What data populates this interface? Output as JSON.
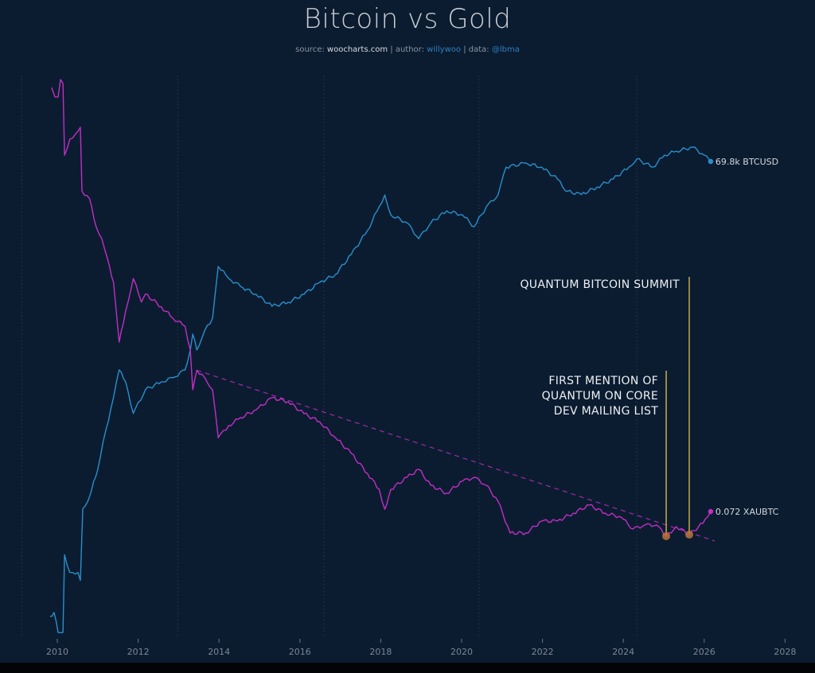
{
  "header": {
    "title": "Bitcoin vs Gold",
    "source_label": "source:",
    "source_value": "woocharts.com",
    "author_label": "| author:",
    "author_value": "willywoo",
    "data_label": "| data:",
    "data_value": "@lbma",
    "sep": " "
  },
  "chart_data": {
    "type": "line",
    "title": "Bitcoin vs Gold",
    "xlabel": "",
    "ylabel": "",
    "yscale": "log",
    "y_axis_labels_shown": false,
    "grid": "vertical dotted lines at halving dates",
    "xlim": [
      2009,
      2028
    ],
    "x_ticks": [
      "2010",
      "2012",
      "2014",
      "2016",
      "2018",
      "2020",
      "2022",
      "2024",
      "2026",
      "2028"
    ],
    "x_tick_values": [
      2010,
      2012,
      2014,
      2016,
      2018,
      2020,
      2022,
      2024,
      2026,
      2028
    ],
    "vlines": [
      2009.12,
      2012.98,
      2016.59,
      2020.43,
      2024.33
    ],
    "series": [
      {
        "name": "BTCUSD",
        "end_label": "69.8k BTCUSD",
        "color": "#2a8fc9",
        "x": [
          2009.82,
          2009.92,
          2010.02,
          2010.14,
          2010.18,
          2010.31,
          2010.51,
          2010.57,
          2010.63,
          2010.76,
          2010.9,
          2011.0,
          2011.2,
          2011.39,
          2011.53,
          2011.69,
          2011.88,
          2012.18,
          2012.57,
          2012.86,
          2013.16,
          2013.29,
          2013.35,
          2013.45,
          2013.65,
          2013.84,
          2013.98,
          2014.24,
          2014.53,
          2014.92,
          2015.31,
          2015.71,
          2016.1,
          2016.49,
          2016.88,
          2017.27,
          2017.67,
          2017.96,
          2018.1,
          2018.25,
          2018.65,
          2018.94,
          2019.24,
          2019.63,
          2020.02,
          2020.31,
          2020.61,
          2020.9,
          2021.1,
          2021.59,
          2021.98,
          2022.37,
          2022.57,
          2022.96,
          2023.35,
          2023.75,
          2024.14,
          2024.33,
          2024.73,
          2025.02,
          2025.31,
          2025.71,
          2026.0,
          2026.16
        ],
        "values": [
          0.089,
          0.1,
          0.055,
          0.055,
          0.56,
          0.33,
          0.33,
          0.26,
          2.2,
          2.8,
          5.0,
          7.1,
          23,
          61,
          139,
          97,
          38,
          77,
          97,
          110,
          139,
          252,
          404,
          252,
          455,
          650,
          3040,
          2130,
          1680,
          1325,
          928,
          1045,
          1325,
          1890,
          2400,
          4340,
          8850,
          18000,
          25700,
          14200,
          11200,
          6980,
          11200,
          16000,
          14200,
          9970,
          18000,
          25700,
          59000,
          66600,
          59000,
          41300,
          29000,
          26000,
          32600,
          41300,
          59000,
          74900,
          59000,
          84300,
          95000,
          107000,
          84300,
          69800
        ]
      },
      {
        "name": "XAUBTC",
        "end_label": "0.072 XAUBTC",
        "color": "#c22ec4",
        "x": [
          2009.86,
          2009.94,
          2010.02,
          2010.08,
          2010.14,
          2010.18,
          2010.31,
          2010.51,
          2010.57,
          2010.61,
          2010.8,
          2010.96,
          2011.1,
          2011.24,
          2011.39,
          2011.53,
          2011.69,
          2011.88,
          2012.08,
          2012.18,
          2012.57,
          2012.86,
          2013.16,
          2013.29,
          2013.35,
          2013.45,
          2013.65,
          2013.84,
          2013.98,
          2014.24,
          2014.53,
          2014.92,
          2015.31,
          2015.71,
          2016.1,
          2016.49,
          2016.88,
          2017.27,
          2017.67,
          2017.96,
          2018.1,
          2018.25,
          2018.65,
          2018.94,
          2019.24,
          2019.63,
          2020.02,
          2020.31,
          2020.61,
          2020.9,
          2021.2,
          2021.59,
          2021.98,
          2022.37,
          2022.76,
          2023.16,
          2023.55,
          2023.94,
          2024.24,
          2024.53,
          2024.82,
          2025.06,
          2025.31,
          2025.63,
          2025.86,
          2026.02,
          2026.16
        ],
        "values": [
          15400,
          11700,
          11700,
          19400,
          17300,
          2170,
          3450,
          4340,
          4870,
          770,
          613,
          274,
          194,
          109,
          55,
          9.7,
          24,
          61,
          31,
          39,
          27,
          19.4,
          15.4,
          7.7,
          2.44,
          4.3,
          3.45,
          2.44,
          0.61,
          0.865,
          1.09,
          1.37,
          1.94,
          1.73,
          1.22,
          0.97,
          0.61,
          0.387,
          0.217,
          0.137,
          0.077,
          0.137,
          0.194,
          0.244,
          0.154,
          0.122,
          0.173,
          0.194,
          0.154,
          0.097,
          0.0387,
          0.0387,
          0.0546,
          0.0546,
          0.0688,
          0.0866,
          0.0688,
          0.0613,
          0.0434,
          0.0487,
          0.0487,
          0.0353,
          0.0465,
          0.0369,
          0.0465,
          0.0572,
          0.072
        ]
      }
    ],
    "trendline": {
      "series": "XAUBTC",
      "style": "dashed",
      "color": "#a22aa5",
      "x": [
        2013.45,
        2026.26
      ],
      "values": [
        4.3,
        0.0307
      ]
    },
    "annotations": [
      {
        "lines": [
          "QUANTUM BITCOIN SUMMIT"
        ],
        "x": 2025.63,
        "value": 0.0369,
        "line_color": "#e3c24a",
        "marker_color": "#b8743a"
      },
      {
        "lines": [
          "FIRST MENTION OF",
          "QUANTUM ON CORE",
          "DEV MAILING LIST"
        ],
        "x": 2025.06,
        "value": 0.0353,
        "line_color": "#e3c24a",
        "marker_color": "#b8743a"
      }
    ]
  }
}
